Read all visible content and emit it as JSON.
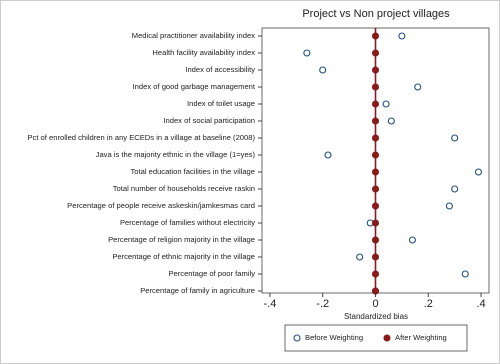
{
  "chart_data": {
    "type": "dot",
    "title": "Project vs Non project villages",
    "x_label": "Standardized bias",
    "categories": [
      "Medical practitioner availability index",
      "Health facility availability index",
      "Index of accessibility",
      "Index of good garbage management",
      "Index of toilet usage",
      "Index of social participation",
      "Pct of enrolled children in any ECEDs in a village at baseline (2008)",
      "Java is the majority ethnic in the village (1=yes)",
      "Total education facilities in the village",
      "Total number of households receive raskin",
      "Percentage of people receive askeskin/jamkesmas card",
      "Percentage of families without electricity",
      "Percentage of religion majority in the village",
      "Percentage of ethnic majority in the village",
      "Percentage of poor family",
      "Percentage of family in agriculture"
    ],
    "series": [
      {
        "name": "Before Weighting",
        "color": "#1f4e79",
        "marker": "hollow",
        "values": [
          0.1,
          -0.26,
          -0.2,
          0.16,
          0.04,
          0.06,
          0.3,
          -0.18,
          0.39,
          0.3,
          0.28,
          -0.02,
          0.14,
          -0.06,
          0.34,
          0.0
        ]
      },
      {
        "name": "After Weighting",
        "color": "#8b1a1a",
        "marker": "filled",
        "values": [
          0,
          0,
          0,
          0,
          0,
          0,
          0,
          0,
          0,
          0,
          0,
          0,
          0,
          0,
          0,
          0
        ]
      }
    ],
    "xlim": [
      -0.43,
      0.43
    ],
    "xticks": [
      {
        "value": -0.4,
        "label": "-.4"
      },
      {
        "value": -0.2,
        "label": "-.2"
      },
      0,
      {
        "value": 0.2,
        "label": ".2"
      },
      {
        "value": 0.4,
        "label": ".4"
      }
    ],
    "xline": 0,
    "legend": "bottom"
  }
}
